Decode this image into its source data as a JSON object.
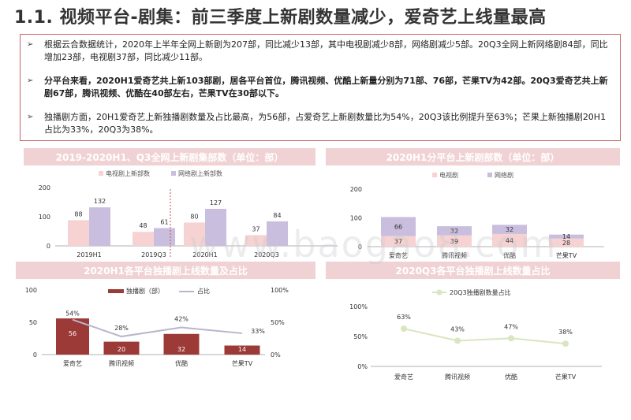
{
  "page": {
    "title": "1.1. 视频平台-剧集：前三季度上新剧数量减少，爱奇艺上线量最高",
    "bullets": [
      {
        "text": "根据云合数据统计，2020年上半年全网上新剧为207部，同比减少13部，其中电视剧减少8部，网络剧减少5部。20Q3全网上新网络剧84部，同比增加23部，电视剧37部，同比减少11部。",
        "bold": false
      },
      {
        "text": "分平台来看，2020H1爱奇艺共上新103部剧，居各平台首位，腾讯视频、优酷上新量分别为71部、76部，芒果TV为42部。20Q3爱奇艺共上新剧67部，腾讯视频、优酷在40部左右，芒果TV在30部以下。",
        "bold": true
      },
      {
        "text": "独播剧方面，20H1爱奇艺上新独播剧数量及占比最高，为56部，占爱奇艺上新剧数量比为54%，20Q3该比例提升至63%；芒果上新独播剧20H1占比为33%，20Q3为38%。",
        "bold": false
      }
    ],
    "bullet_mark": "➢",
    "watermark": "www.baogao8.com",
    "colors": {
      "accent": "#c9636a",
      "header": "#f0d2d4",
      "tv": "#f6d3d2",
      "web": "#c9bede",
      "dark_red": "#9c3a37",
      "line_gray": "#b9b5cc",
      "line_green": "#d9e6bf"
    }
  },
  "chart_data": [
    {
      "type": "bar",
      "title": "2019-2020H1、Q3全网上新剧集部数（单位：部）",
      "categories": [
        "2019H1",
        "2019Q3",
        "2020H1",
        "2020Q3"
      ],
      "series": [
        {
          "name": "电视剧上新部数",
          "values": [
            88,
            48,
            80,
            37
          ]
        },
        {
          "name": "网络剧上新部数",
          "values": [
            132,
            61,
            127,
            84
          ]
        }
      ],
      "ylim": [
        0,
        200
      ],
      "yticks": [
        "0",
        "100",
        "200"
      ]
    },
    {
      "type": "bar",
      "stacked": true,
      "title": "2020H1分平台上新剧部数（单位：部）",
      "categories": [
        "爱奇艺",
        "腾讯视频",
        "优酷",
        "芒果TV"
      ],
      "series": [
        {
          "name": "电视剧",
          "values": [
            37,
            39,
            44,
            28
          ]
        },
        {
          "name": "网络剧",
          "values": [
            66,
            32,
            32,
            14
          ]
        }
      ],
      "ylim": [
        0,
        200
      ],
      "yticks": [
        "0",
        "100",
        "200"
      ]
    },
    {
      "type": "bar",
      "title": "2020H1各平台独播剧上线数量及占比",
      "categories": [
        "爱奇艺",
        "腾讯视频",
        "优酷",
        "芒果TV"
      ],
      "series": [
        {
          "name": "独播剧（部）",
          "type": "bar",
          "values": [
            56,
            20,
            32,
            14
          ]
        },
        {
          "name": "占比",
          "type": "line",
          "values": [
            54,
            28,
            42,
            33
          ],
          "labels": [
            "54%",
            "28%",
            "42%",
            "33%"
          ]
        }
      ],
      "ylim": [
        0,
        100
      ],
      "yticks": [
        "0",
        "50",
        "100"
      ],
      "y2lim": [
        0,
        100
      ],
      "y2ticks": [
        "0%",
        "50%",
        "100%"
      ]
    },
    {
      "type": "line",
      "title": "2020Q3各平台独播剧上线数量占比",
      "categories": [
        "爱奇艺",
        "腾讯视频",
        "优酷",
        "芒果TV"
      ],
      "series": [
        {
          "name": "20Q3独播剧数量占比",
          "values": [
            63,
            43,
            47,
            38
          ],
          "labels": [
            "63%",
            "43%",
            "47%",
            "38%"
          ]
        }
      ],
      "ylim": [
        0,
        100
      ],
      "yticks": [
        "0%",
        "50%",
        "100%"
      ]
    }
  ]
}
